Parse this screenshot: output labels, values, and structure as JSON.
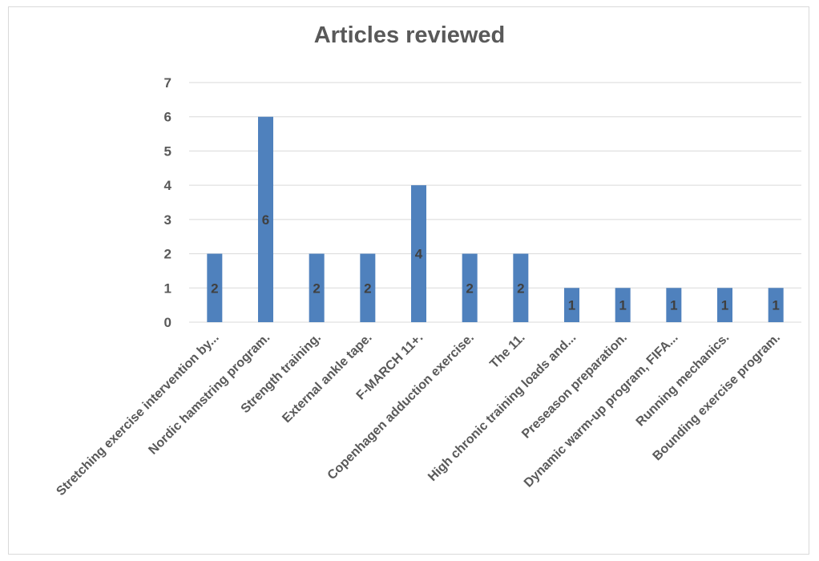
{
  "chart_data": {
    "type": "bar",
    "title": "Articles reviewed",
    "xlabel": "",
    "ylabel": "",
    "ylim": [
      0,
      7
    ],
    "yticks": [
      0,
      1,
      2,
      3,
      4,
      5,
      6,
      7
    ],
    "grid": true,
    "legend": "none",
    "bar_color": "#4f81bd",
    "categories": [
      "Stretching exercise intervention by...",
      "Nordic hamstring program.",
      "Strength training.",
      "External ankle tape.",
      "F-MARCH 11+.",
      "Copenhagen adduction exercise.",
      "The 11.",
      "High chronic training loads and...",
      "Preseason preparation.",
      "Dynamic warm-up program, FIFA...",
      "Running mechanics.",
      "Bounding exercise program."
    ],
    "values": [
      2,
      6,
      2,
      2,
      4,
      2,
      2,
      1,
      1,
      1,
      1,
      1
    ]
  }
}
